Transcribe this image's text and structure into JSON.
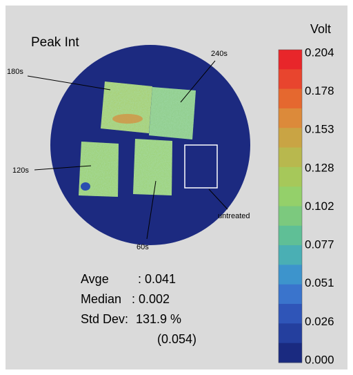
{
  "title": "Peak Int",
  "colorbar": {
    "label": "Volt",
    "ticks": [
      "0.204",
      "0.178",
      "0.153",
      "0.128",
      "0.102",
      "0.077",
      "0.051",
      "0.026",
      "0.000"
    ]
  },
  "annotations": [
    "180s",
    "240s",
    "120s",
    "60s",
    "untreated"
  ],
  "stats": [
    {
      "label": "Avge",
      "value": ": 0.041"
    },
    {
      "label": "Median",
      "value": ": 0.002"
    },
    {
      "label": "Std Dev:",
      "value": "131.9 %"
    }
  ],
  "std_dev_abs": "(0.054)"
}
